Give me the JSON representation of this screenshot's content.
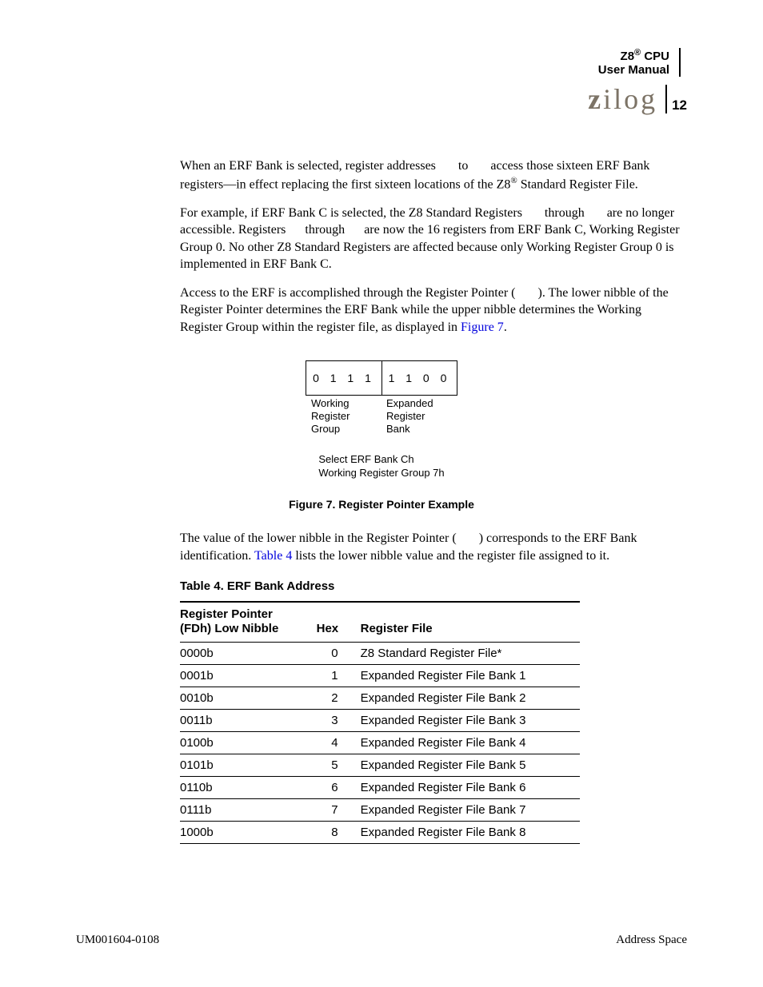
{
  "header": {
    "product_line1": "Z8",
    "product_reg": "®",
    "product_suffix": " CPU",
    "product_line2": "User Manual",
    "logo_text": "zilog",
    "page_number": "12"
  },
  "paragraphs": {
    "p1_a": "When an ERF Bank is selected, register addresses ",
    "p1_b": " to ",
    "p1_c": " access those sixteen ERF Bank registers—in effect replacing the first sixteen locations of the Z8",
    "p1_sup": "®",
    "p1_d": " Standard Register File.",
    "p2_a": "For example, if ERF Bank C is selected, the Z8 Standard Registers ",
    "p2_b": " through ",
    "p2_c": " are no longer accessible. Registers ",
    "p2_d": " through ",
    "p2_e": " are now the 16 registers from ERF Bank C, Working Register Group 0. No other Z8 Standard Registers are affected because only Working Register Group 0 is implemented in ERF Bank C.",
    "p3_a": "Access to the ERF is accomplished through the Register Pointer (",
    "p3_b": "). The lower nibble of the Register Pointer determines the ERF Bank while the upper nibble determines the Working Register Group within the register file, as displayed in ",
    "p3_link": "Figure 7",
    "p3_c": ".",
    "p4_a": "The value of the lower nibble in the Register Pointer (",
    "p4_b": ") corresponds to the ERF Bank identification. ",
    "p4_link": "Table 4",
    "p4_c": " lists the lower nibble value and the register file assigned to it."
  },
  "figure": {
    "nibble_left": "0 1 1 1",
    "nibble_right": "1 1 0 0",
    "label_left_l1": "Working",
    "label_left_l2": "Register",
    "label_left_l3": "Group",
    "label_right_l1": "Expanded",
    "label_right_l2": "Register",
    "label_right_l3": "Bank",
    "sub_l1": "Select ERF Bank Ch",
    "sub_l2": "Working Register Group 7h",
    "caption": "Figure 7. Register Pointer Example"
  },
  "table": {
    "title": "Table 4. ERF Bank Address",
    "col1_l1": "Register Pointer",
    "col1_l2": "(FDh) Low Nibble",
    "col2": "Hex",
    "col3": "Register File",
    "rows": [
      {
        "nib": "0000b",
        "hex": "0",
        "file": "Z8 Standard Register File*"
      },
      {
        "nib": "0001b",
        "hex": "1",
        "file": "Expanded Register File Bank 1"
      },
      {
        "nib": "0010b",
        "hex": "2",
        "file": "Expanded Register File Bank 2"
      },
      {
        "nib": "0011b",
        "hex": "3",
        "file": "Expanded Register File Bank 3"
      },
      {
        "nib": "0100b",
        "hex": "4",
        "file": "Expanded Register File Bank 4"
      },
      {
        "nib": "0101b",
        "hex": "5",
        "file": "Expanded Register File Bank 5"
      },
      {
        "nib": "0110b",
        "hex": "6",
        "file": "Expanded Register File Bank 6"
      },
      {
        "nib": "0111b",
        "hex": "7",
        "file": "Expanded Register File Bank 7"
      },
      {
        "nib": "1000b",
        "hex": "8",
        "file": "Expanded Register File Bank 8"
      }
    ]
  },
  "footer": {
    "left": "UM001604-0108",
    "right": "Address Space"
  }
}
